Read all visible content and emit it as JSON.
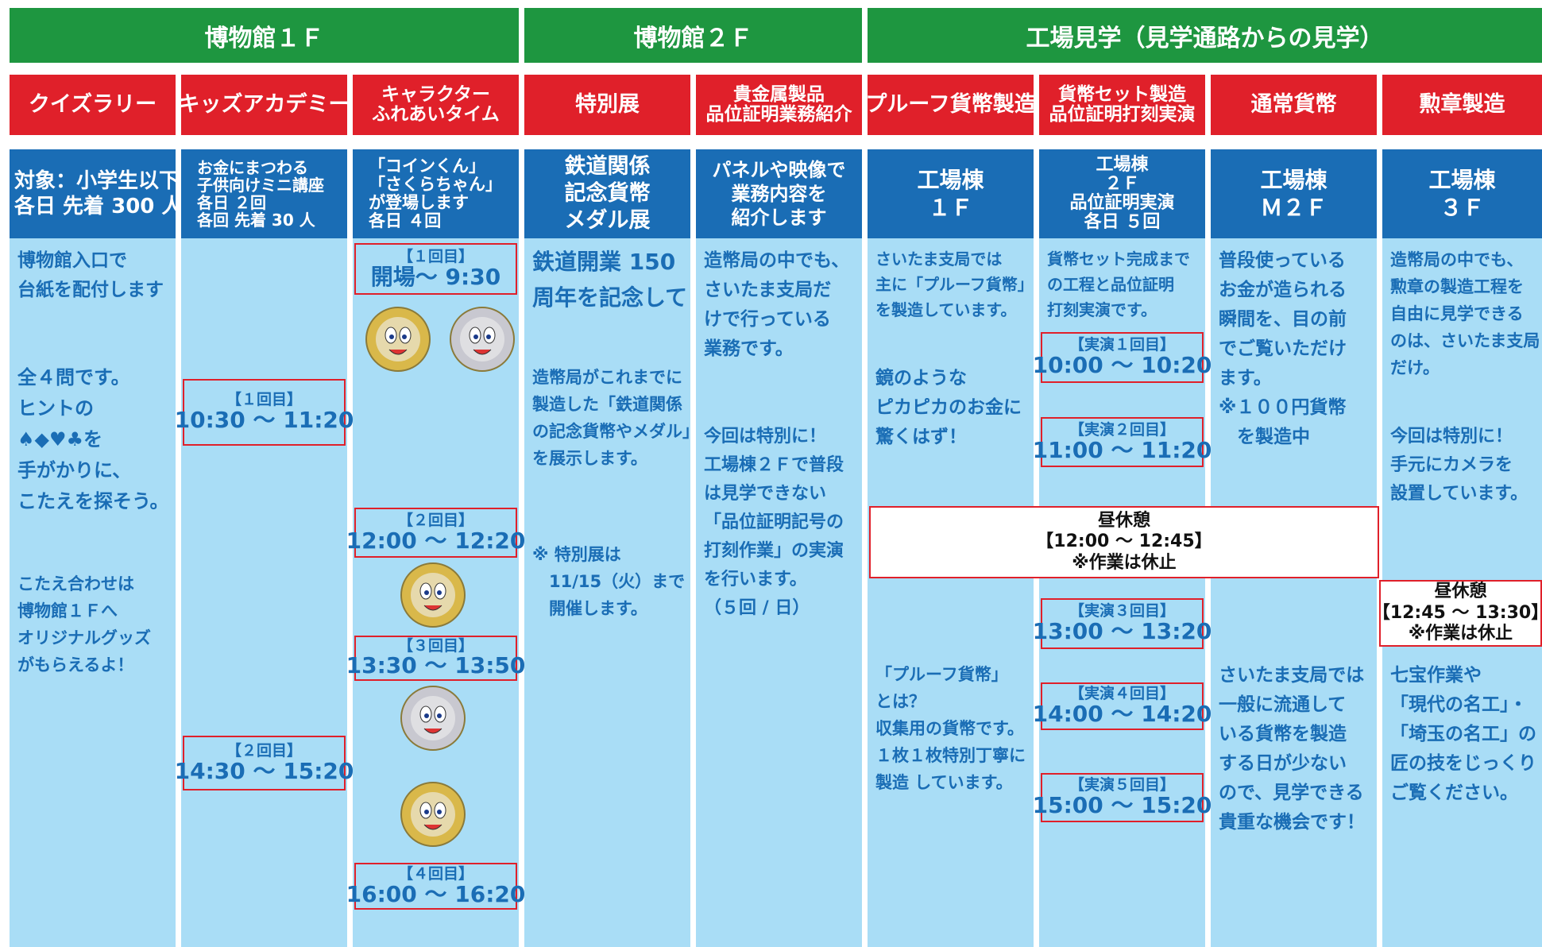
{
  "groups": [
    "博物館１Ｆ",
    "博物館２Ｆ",
    "工場見学（見学通路からの見学）"
  ],
  "columns": [
    {
      "title": [
        "クイズラリー"
      ],
      "info": [
        "対象：小学生以下",
        "各日 先着 300 人"
      ],
      "blocks": [
        {
          "lines": [
            "博物館入口で",
            "台紙を配付します"
          ]
        },
        {
          "lines": [
            "全４問です。",
            "ヒントの",
            "♠◆♥♣を",
            "手がかりに、",
            "こたえを探そう。"
          ]
        },
        {
          "lines": [
            "こたえ合わせは",
            "博物館１Ｆへ",
            "オリジナルグッズ",
            "がもらえるよ！"
          ]
        }
      ]
    },
    {
      "title": [
        "キッズアカデミー"
      ],
      "info": [
        "お金にまつわる",
        "子供向けミニ講座",
        "各日 ２回",
        "各回 先着 30 人"
      ],
      "blocks": [
        {
          "label": "【１回目】",
          "time": "10:30 ～ 11:20"
        },
        {
          "label": "【２回目】",
          "time": "14:30 ～ 15:20"
        }
      ]
    },
    {
      "title": [
        "キャラクター",
        "ふれあいタイム"
      ],
      "info": [
        "「コインくん」",
        "「さくらちゃん」",
        "が登場します",
        "各日 ４回"
      ],
      "blocks": [
        {
          "label": "【１回目】",
          "time": "開場～ 9:30"
        },
        {
          "label": "【２回目】",
          "time": "12:00 ～ 12:20"
        },
        {
          "label": "【３回目】",
          "time": "13:30 ～ 13:50"
        },
        {
          "label": "【４回目】",
          "time": "16:00 ～ 16:20"
        }
      ]
    },
    {
      "title": [
        "特別展"
      ],
      "info": [
        "鉄道関係",
        "記念貨幣",
        "メダル展"
      ],
      "blocks": [
        {
          "lines": [
            "鉄道開業 150",
            "周年を記念して"
          ]
        },
        {
          "lines": [
            "造幣局がこれまでに",
            "製造した「鉄道関係",
            "の記念貨幣やメダル」",
            "を展示します。"
          ]
        },
        {
          "lines": [
            "※ 特別展は",
            "　11/15（火）まで",
            "　開催します。"
          ]
        }
      ]
    },
    {
      "title": [
        "貴金属製品",
        "品位証明業務紹介"
      ],
      "info": [
        "パネルや映像で",
        "業務内容を",
        "紹介します"
      ],
      "blocks": [
        {
          "lines": [
            "造幣局の中でも、",
            "さいたま支局だ",
            "けで行っている",
            "業務です。"
          ]
        },
        {
          "lines": [
            "今回は特別に！",
            "工場棟２Ｆで普段",
            "は見学できない",
            "「品位証明記号の",
            "打刻作業」の実演",
            "を行います。",
            "（５回 / 日）"
          ]
        }
      ]
    },
    {
      "title": [
        "プルーフ貨幣製造"
      ],
      "info": [
        "工場棟",
        "１Ｆ"
      ],
      "blocks": [
        {
          "lines": [
            "さいたま支局では",
            "主に「プルーフ貨幣」",
            "を製造しています。"
          ]
        },
        {
          "lines": [
            "鏡のような",
            "ピカピカのお金に",
            "驚くはず！"
          ]
        },
        {
          "lines": [
            "「プルーフ貨幣」",
            "とは？",
            "収集用の貨幣です。",
            "１枚１枚特別丁寧に",
            "製造 しています。"
          ]
        }
      ]
    },
    {
      "title": [
        "貨幣セット製造",
        "品位証明打刻実演"
      ],
      "info": [
        "工場棟",
        "２Ｆ",
        "品位証明実演",
        "各日 ５回"
      ],
      "blocks": [
        {
          "lines": [
            "貨幣セット完成まで",
            "の工程と品位証明",
            "打刻実演です。"
          ]
        },
        {
          "label": "【実演１回目】",
          "time": "10:00 ～ 10:20"
        },
        {
          "label": "【実演２回目】",
          "time": "11:00 ～ 11:20"
        },
        {
          "label": "【実演３回目】",
          "time": "13:00 ～ 13:20"
        },
        {
          "label": "【実演４回目】",
          "time": "14:00 ～ 14:20"
        },
        {
          "label": "【実演５回目】",
          "time": "15:00 ～ 15:20"
        }
      ]
    },
    {
      "title": [
        "通常貨幣"
      ],
      "info": [
        "工場棟",
        "Ｍ２Ｆ"
      ],
      "blocks": [
        {
          "lines": [
            "普段使っている",
            "お金が造られる",
            "瞬間を、目の前",
            "でご覧いただけ",
            "ます。",
            "※１００円貨幣",
            "　を製造中"
          ]
        },
        {
          "lines": [
            "さいたま支局では",
            "一般に流通して",
            "いる貨幣を製造",
            "する日が少ない",
            "ので、見学できる",
            "貴重な機会です！"
          ]
        }
      ]
    },
    {
      "title": [
        "勲章製造"
      ],
      "info": [
        "工場棟",
        "３Ｆ"
      ],
      "blocks": [
        {
          "lines": [
            "造幣局の中でも、",
            "勲章の製造工程を",
            "自由に見学できる",
            "のは、さいたま支局",
            "だけ。"
          ]
        },
        {
          "lines": [
            "今回は特別に！",
            "手元にカメラを",
            "設置しています。"
          ]
        },
        {
          "lines": [
            "七宝作業や",
            "「現代の名工」・",
            "「埼玉の名工」の",
            "匠の技をじっくり",
            "ご覧ください。"
          ]
        }
      ]
    }
  ],
  "lunch": [
    {
      "title": "昼休憩",
      "time": "【12:00 ～ 12:45】",
      "note": "※作業は休止"
    },
    {
      "title": "昼休憩",
      "time": "【12:45 ～ 13:30】",
      "note": "※作業は休止"
    }
  ]
}
